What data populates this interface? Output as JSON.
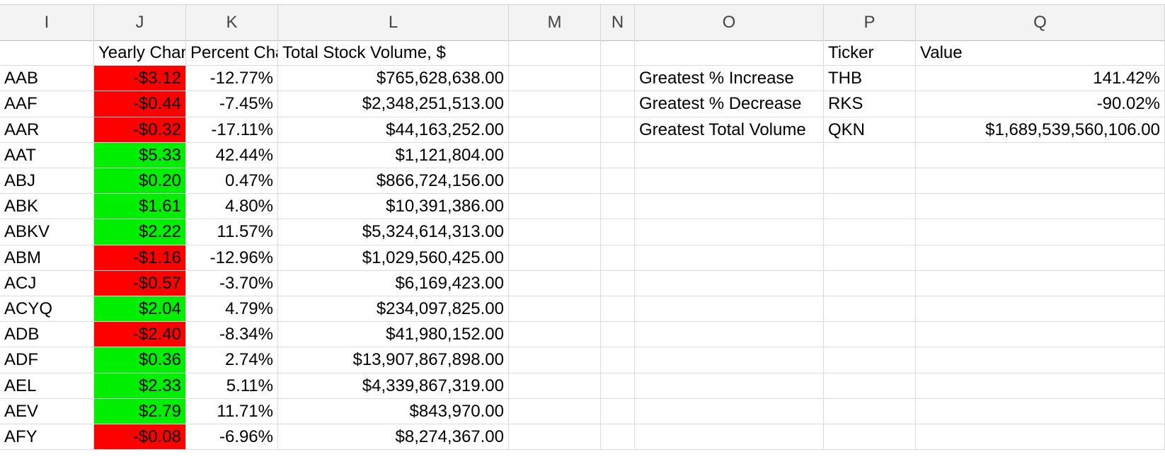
{
  "columns": [
    "I",
    "J",
    "K",
    "L",
    "M",
    "N",
    "O",
    "P",
    "Q"
  ],
  "headers": {
    "ticker": "",
    "yearly_change": "Yearly Change",
    "percent_change": "Percent Change",
    "total_volume": "Total Stock Volume, $",
    "summary_ticker": "Ticker",
    "summary_value": "Value"
  },
  "rows": [
    {
      "ticker": "AAB",
      "change": "-$3.12",
      "pct": "-12.77%",
      "volume": "$765,628,638.00",
      "status": "neg"
    },
    {
      "ticker": "AAF",
      "change": "-$0.44",
      "pct": "-7.45%",
      "volume": "$2,348,251,513.00",
      "status": "neg"
    },
    {
      "ticker": "AAR",
      "change": "-$0.32",
      "pct": "-17.11%",
      "volume": "$44,163,252.00",
      "status": "neg"
    },
    {
      "ticker": "AAT",
      "change": "$5.33",
      "pct": "42.44%",
      "volume": "$1,121,804.00",
      "status": "pos"
    },
    {
      "ticker": "ABJ",
      "change": "$0.20",
      "pct": "0.47%",
      "volume": "$866,724,156.00",
      "status": "pos"
    },
    {
      "ticker": "ABK",
      "change": "$1.61",
      "pct": "4.80%",
      "volume": "$10,391,386.00",
      "status": "pos"
    },
    {
      "ticker": "ABKV",
      "change": "$2.22",
      "pct": "11.57%",
      "volume": "$5,324,614,313.00",
      "status": "pos"
    },
    {
      "ticker": "ABM",
      "change": "-$1.16",
      "pct": "-12.96%",
      "volume": "$1,029,560,425.00",
      "status": "neg"
    },
    {
      "ticker": "ACJ",
      "change": "-$0.57",
      "pct": "-3.70%",
      "volume": "$6,169,423.00",
      "status": "neg"
    },
    {
      "ticker": "ACYQ",
      "change": "$2.04",
      "pct": "4.79%",
      "volume": "$234,097,825.00",
      "status": "pos"
    },
    {
      "ticker": "ADB",
      "change": "-$2.40",
      "pct": "-8.34%",
      "volume": "$41,980,152.00",
      "status": "neg"
    },
    {
      "ticker": "ADF",
      "change": "$0.36",
      "pct": "2.74%",
      "volume": "$13,907,867,898.00",
      "status": "pos"
    },
    {
      "ticker": "AEL",
      "change": "$2.33",
      "pct": "5.11%",
      "volume": "$4,339,867,319.00",
      "status": "pos"
    },
    {
      "ticker": "AEV",
      "change": "$2.79",
      "pct": "11.71%",
      "volume": "$843,970.00",
      "status": "pos"
    },
    {
      "ticker": "AFY",
      "change": "-$0.08",
      "pct": "-6.96%",
      "volume": "$8,274,367.00",
      "status": "neg"
    }
  ],
  "summary": [
    {
      "label": "Greatest % Increase",
      "ticker": "THB",
      "value": "141.42%"
    },
    {
      "label": "Greatest % Decrease",
      "ticker": "RKS",
      "value": "-90.02%"
    },
    {
      "label": "Greatest Total Volume",
      "ticker": "QKN",
      "value": "$1,689,539,560,106.00"
    }
  ],
  "colors": {
    "negative": "#ff0000",
    "positive": "#00ee00",
    "header_bg": "#f3f3f3",
    "gridline": "#dadada"
  }
}
